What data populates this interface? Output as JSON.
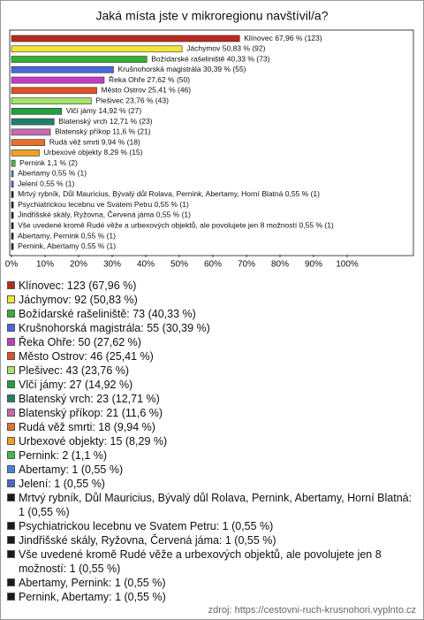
{
  "chart_data": {
    "type": "bar",
    "orientation": "horizontal",
    "title": "Jaká místa jste v mikroregionu navštívil/a?",
    "categories": [
      "Klínovec",
      "Jáchymov",
      "Božídarské rašeliniště",
      "Krušnohorská magistrála",
      "Řeka Ohře",
      "Město Ostrov",
      "Plešivec",
      "Vlčí jámy",
      "Blatenský vrch",
      "Blatenský příkop",
      "Rudá věž smrti",
      "Urbexové objekty",
      "Pernink",
      "Abertamy",
      "Jelení",
      "Mrtvý rybník, Důl Mauricius, Bývalý důl Rolava, Pernink, Abertamy, Horní Blatná",
      "Psychiatrickou lecebnu ve Svatem Petru",
      "Jindřišské skály, Ryžovna, Červená jáma",
      "Vše uvedené kromě Rudé věže a urbexových objektů, ale povolujete jen 8 možností",
      "Abertamy, Pernink",
      "Pernink, Abertamy"
    ],
    "values": [
      67.96,
      50.83,
      40.33,
      30.39,
      27.62,
      25.41,
      23.76,
      14.92,
      12.71,
      11.6,
      9.94,
      8.29,
      1.1,
      0.55,
      0.55,
      0.55,
      0.55,
      0.55,
      0.55,
      0.55,
      0.55
    ],
    "value_labels": [
      "Klínovec 67,96 % (123)",
      "Jáchymov 50,83 % (92)",
      "Božídarské rašeliniště 40,33 % (73)",
      "Krušnohorská magistrála 30,39 % (55)",
      "Řeka Ohře 27,62 % (50)",
      "Město Ostrov 25,41 % (46)",
      "Plešivec 23,76 % (43)",
      "Vlčí jámy 14,92 % (27)",
      "Blatenský vrch 12,71 % (23)",
      "Blatenský příkop 11,6 % (21)",
      "Rudá věž smrti 9,94 % (18)",
      "Urbexové objekty 8,29 % (15)",
      "Pernink 1,1 % (2)",
      "Abertamy 0,55 % (1)",
      "Jelení 0,55 % (1)",
      "Mrtvý rybník, Důl Mauricius, Bývalý důl Rolava, Pernink, Abertamy, Horní Blatná 0,55 % (1)",
      "Psychiatrickou lecebnu ve Svatem Petru 0,55 % (1)",
      "Jindřišské skály, Ryžovna, Červená jáma 0,55 % (1)",
      "Vše uvedené kromě Rudé věže a urbexových objektů, ale povolujete jen 8 možností 0,55 % (1)",
      "Abertamy, Pernink 0,55 % (1)",
      "Pernink, Abertamy 0,55 % (1)"
    ],
    "legend_labels": [
      "Klínovec: 123 (67,96 %)",
      "Jáchymov: 92 (50,83 %)",
      "Božídarské rašeliniště: 73 (40,33 %)",
      "Krušnohorská magistrála: 55 (30,39 %)",
      "Řeka Ohře: 50 (27,62 %)",
      "Město Ostrov: 46 (25,41 %)",
      "Plešivec: 43 (23,76 %)",
      "Vlčí jámy: 27 (14,92 %)",
      "Blatenský vrch: 23 (12,71 %)",
      "Blatenský příkop: 21 (11,6 %)",
      "Rudá věž smrti: 18 (9,94 %)",
      "Urbexové objekty: 15 (8,29 %)",
      "Pernink: 2 (1,1 %)",
      "Abertamy: 1 (0,55 %)",
      "Jelení: 1 (0,55 %)",
      "Mrtvý rybník, Důl Mauricius, Bývalý důl Rolava, Pernink, Abertamy, Horní Blatná: 1 (0,55 %)",
      "Psychiatrickou lecebnu ve Svatem Petru: 1 (0,55 %)",
      "Jindřišské skály, Ryžovna, Červená jáma: 1 (0,55 %)",
      "Vše uvedené kromě Rudé věže a urbexových objektů, ale povolujete jen 8 možností: 1 (0,55 %)",
      "Abertamy, Pernink: 1 (0,55 %)",
      "Pernink, Abertamy: 1 (0,55 %)"
    ],
    "colors": [
      "#b8281e",
      "#f2e53a",
      "#33b233",
      "#4a66dd",
      "#c63bc6",
      "#e2502a",
      "#a6e36a",
      "#22a040",
      "#22806a",
      "#c46aae",
      "#e8702a",
      "#eea028",
      "#44bb44",
      "#4a80dd",
      "#4a66cc",
      "#1a1a1a",
      "#1a1a1a",
      "#1a1a1a",
      "#1a1a1a",
      "#1a1a1a",
      "#1a1a1a"
    ],
    "xlim": [
      0,
      120
    ],
    "xticks": [
      {
        "value": 0,
        "label": "0%"
      },
      {
        "value": 10,
        "label": "10%"
      },
      {
        "value": 20,
        "label": "20%"
      },
      {
        "value": 30,
        "label": "30%"
      },
      {
        "value": 40,
        "label": "40%"
      },
      {
        "value": 50,
        "label": "50%"
      },
      {
        "value": 60,
        "label": "60%"
      },
      {
        "value": 70,
        "label": "70%"
      },
      {
        "value": 80,
        "label": "80%"
      },
      {
        "value": 90,
        "label": "90%"
      },
      {
        "value": 100,
        "label": "100%"
      }
    ],
    "source": "zdroj: https://cestovni-ruch-krusnohori.vyplnto.cz"
  }
}
